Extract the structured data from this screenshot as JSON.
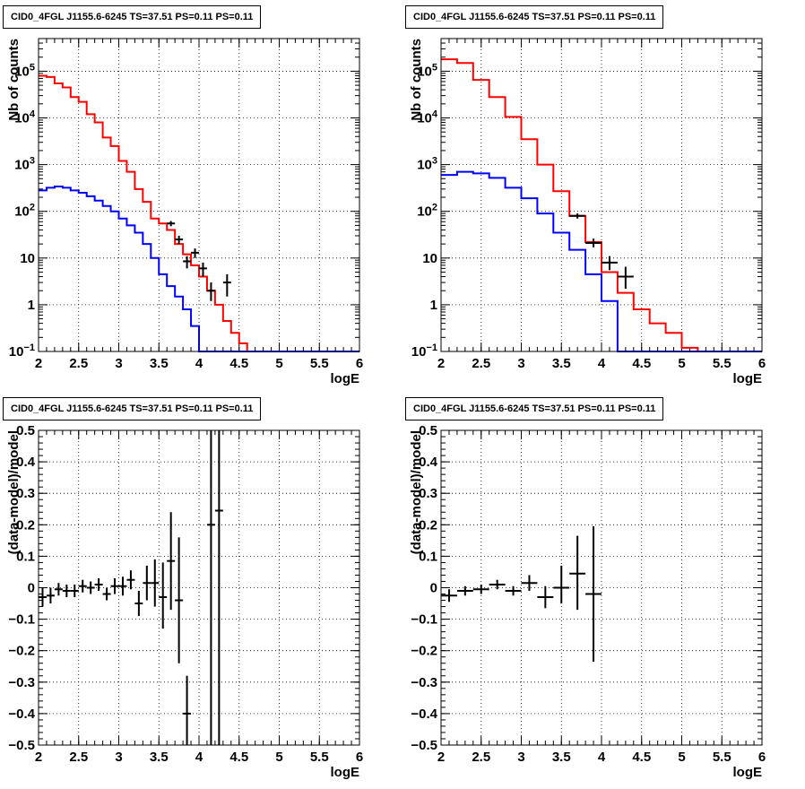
{
  "chart_data": [
    {
      "type": "line",
      "title": "CID0_4FGL J1155.6-6245 TS=37.51 PS=0.11 PS=0.11",
      "xlabel": "logE",
      "ylabel": "Nb of counts",
      "xlim": [
        2,
        6
      ],
      "ylim": [
        0.1,
        500000
      ],
      "yscale": "log",
      "grid": true,
      "x_ticks": [
        "2",
        "2.5",
        "3",
        "3.5",
        "4",
        "4.5",
        "5",
        "5.5",
        "6"
      ],
      "y_ticks": [
        {
          "v": 0.1,
          "base": "10",
          "exp": "−1"
        },
        {
          "v": 1,
          "label": "1"
        },
        {
          "v": 10,
          "label": "10"
        },
        {
          "v": 100,
          "base": "10",
          "exp": "2"
        },
        {
          "v": 1000,
          "base": "10",
          "exp": "3"
        },
        {
          "v": 10000,
          "base": "10",
          "exp": "4"
        },
        {
          "v": 100000,
          "base": "10",
          "exp": "5"
        }
      ],
      "bin_edges": [
        2.0,
        2.1,
        2.2,
        2.3,
        2.4,
        2.5,
        2.6,
        2.7,
        2.8,
        2.9,
        3.0,
        3.1,
        3.2,
        3.3,
        3.4,
        3.5,
        3.6,
        3.7,
        3.8,
        3.9,
        4.0,
        4.1,
        4.2,
        4.3,
        4.4,
        4.5,
        4.6,
        4.7,
        4.8,
        4.9,
        5.0,
        5.1,
        5.2,
        5.3,
        5.4,
        5.5,
        5.6,
        5.7,
        5.8,
        5.9,
        6.0
      ],
      "series": [
        {
          "color": "#ff0000",
          "style": "step",
          "values": [
            80000,
            75000,
            55000,
            45000,
            28000,
            22000,
            12000,
            8000,
            3800,
            2500,
            1200,
            700,
            300,
            160,
            70,
            55,
            40,
            20,
            12,
            7,
            4,
            2,
            1,
            0.45,
            0.25,
            0.15,
            0.1,
            0.1,
            0.1,
            0.1,
            0.1,
            0.1,
            0.1,
            0.1,
            0.1,
            0.1,
            0.1,
            0.1,
            0.1,
            0.1
          ]
        },
        {
          "color": "#0000ff",
          "style": "step",
          "values": [
            280,
            320,
            340,
            320,
            280,
            250,
            210,
            170,
            130,
            100,
            70,
            50,
            35,
            20,
            10,
            4.5,
            2.5,
            1.5,
            0.8,
            0.35,
            0.1,
            0.1,
            0.1,
            0.1,
            0.1,
            0.1,
            0.1,
            0.1,
            0.1,
            0.1,
            0.1,
            0.1,
            0.1,
            0.1,
            0.1,
            0.1,
            0.1,
            0.1,
            0.1,
            0.1
          ]
        }
      ],
      "points": [
        {
          "x": 3.65,
          "y": 55,
          "xerr": 0.05,
          "ylo": 48,
          "yhi": 62
        },
        {
          "x": 3.75,
          "y": 25,
          "xerr": 0.05,
          "ylo": 20,
          "yhi": 30
        },
        {
          "x": 3.85,
          "y": 8.5,
          "xerr": 0.05,
          "ylo": 6,
          "yhi": 11
        },
        {
          "x": 3.95,
          "y": 13,
          "xerr": 0.05,
          "ylo": 10,
          "yhi": 16
        },
        {
          "x": 4.05,
          "y": 6,
          "xerr": 0.05,
          "ylo": 4,
          "yhi": 8
        },
        {
          "x": 4.15,
          "y": 2,
          "xerr": 0.05,
          "ylo": 1.2,
          "yhi": 3
        },
        {
          "x": 4.35,
          "y": 3,
          "xerr": 0.05,
          "ylo": 1.5,
          "yhi": 4.5
        }
      ]
    },
    {
      "type": "line",
      "title": "CID0_4FGL J1155.6-6245 TS=37.51 PS=0.11 PS=0.11",
      "xlabel": "logE",
      "ylabel": "Nb of counts",
      "xlim": [
        2,
        6
      ],
      "ylim": [
        0.1,
        500000
      ],
      "yscale": "log",
      "grid": true,
      "x_ticks": [
        "2",
        "2.5",
        "3",
        "3.5",
        "4",
        "4.5",
        "5",
        "5.5",
        "6"
      ],
      "y_ticks": [
        {
          "v": 0.1,
          "base": "10",
          "exp": "−1"
        },
        {
          "v": 1,
          "label": "1"
        },
        {
          "v": 10,
          "label": "10"
        },
        {
          "v": 100,
          "base": "10",
          "exp": "2"
        },
        {
          "v": 1000,
          "base": "10",
          "exp": "3"
        },
        {
          "v": 10000,
          "base": "10",
          "exp": "4"
        },
        {
          "v": 100000,
          "base": "10",
          "exp": "5"
        }
      ],
      "bin_edges": [
        2.0,
        2.2,
        2.4,
        2.6,
        2.8,
        3.0,
        3.2,
        3.4,
        3.6,
        3.8,
        4.0,
        4.2,
        4.4,
        4.6,
        4.8,
        5.0,
        5.2,
        5.4,
        5.6,
        5.8,
        6.0
      ],
      "series": [
        {
          "color": "#ff0000",
          "style": "step",
          "values": [
            180000,
            150000,
            65000,
            28000,
            10500,
            3500,
            1000,
            270,
            80,
            22,
            5,
            1.8,
            0.8,
            0.4,
            0.25,
            0.12,
            0.1,
            0.1,
            0.1,
            0.1
          ]
        },
        {
          "color": "#0000ff",
          "style": "step",
          "values": [
            600,
            700,
            650,
            520,
            320,
            190,
            90,
            35,
            15,
            4.5,
            1.2,
            0.1,
            0.1,
            0.1,
            0.1,
            0.1,
            0.1,
            0.1,
            0.1,
            0.1
          ]
        }
      ],
      "points": [
        {
          "x": 3.7,
          "y": 80,
          "xerr": 0.1,
          "ylo": 70,
          "yhi": 90
        },
        {
          "x": 3.9,
          "y": 21,
          "xerr": 0.1,
          "ylo": 17,
          "yhi": 26
        },
        {
          "x": 4.1,
          "y": 8,
          "xerr": 0.1,
          "ylo": 5.5,
          "yhi": 11
        },
        {
          "x": 4.3,
          "y": 4,
          "xerr": 0.1,
          "ylo": 2.2,
          "yhi": 6.5
        }
      ]
    },
    {
      "type": "scatter",
      "title": "CID0_4FGL J1155.6-6245 TS=37.51 PS=0.11 PS=0.11",
      "xlabel": "logE",
      "ylabel": "(data-model)/model",
      "xlim": [
        2,
        6
      ],
      "ylim": [
        -0.5,
        0.5
      ],
      "yscale": "linear",
      "grid": true,
      "x_ticks": [
        "2",
        "2.5",
        "3",
        "3.5",
        "4",
        "4.5",
        "5",
        "5.5",
        "6"
      ],
      "y_ticks": [
        {
          "v": -0.5,
          "label": "−0.5"
        },
        {
          "v": -0.4,
          "label": "−0.4"
        },
        {
          "v": -0.3,
          "label": "−0.3"
        },
        {
          "v": -0.2,
          "label": "−0.2"
        },
        {
          "v": -0.1,
          "label": "−0.1"
        },
        {
          "v": 0,
          "label": "0"
        },
        {
          "v": 0.1,
          "label": "0.1"
        },
        {
          "v": 0.2,
          "label": "0.2"
        },
        {
          "v": 0.3,
          "label": "0.3"
        },
        {
          "v": 0.4,
          "label": "0.4"
        },
        {
          "v": 0.5,
          "label": "0.5"
        }
      ],
      "points": [
        {
          "x": 2.05,
          "y": -0.03,
          "xerr": 0.05,
          "ylo": -0.06,
          "yhi": 0.0
        },
        {
          "x": 2.15,
          "y": -0.025,
          "xerr": 0.05,
          "ylo": -0.05,
          "yhi": 0.0
        },
        {
          "x": 2.25,
          "y": -0.005,
          "xerr": 0.05,
          "ylo": -0.025,
          "yhi": 0.015
        },
        {
          "x": 2.35,
          "y": -0.01,
          "xerr": 0.05,
          "ylo": -0.03,
          "yhi": 0.01
        },
        {
          "x": 2.45,
          "y": -0.01,
          "xerr": 0.05,
          "ylo": -0.03,
          "yhi": 0.01
        },
        {
          "x": 2.55,
          "y": 0.005,
          "xerr": 0.05,
          "ylo": -0.015,
          "yhi": 0.025
        },
        {
          "x": 2.65,
          "y": 0.0,
          "xerr": 0.05,
          "ylo": -0.02,
          "yhi": 0.02
        },
        {
          "x": 2.75,
          "y": 0.01,
          "xerr": 0.05,
          "ylo": -0.01,
          "yhi": 0.03
        },
        {
          "x": 2.85,
          "y": -0.02,
          "xerr": 0.05,
          "ylo": -0.04,
          "yhi": 0.0
        },
        {
          "x": 2.95,
          "y": 0.005,
          "xerr": 0.05,
          "ylo": -0.02,
          "yhi": 0.03
        },
        {
          "x": 3.05,
          "y": 0.005,
          "xerr": 0.05,
          "ylo": -0.025,
          "yhi": 0.035
        },
        {
          "x": 3.15,
          "y": 0.025,
          "xerr": 0.05,
          "ylo": -0.005,
          "yhi": 0.055
        },
        {
          "x": 3.25,
          "y": -0.05,
          "xerr": 0.05,
          "ylo": -0.09,
          "yhi": -0.01
        },
        {
          "x": 3.35,
          "y": 0.015,
          "xerr": 0.05,
          "ylo": -0.04,
          "yhi": 0.07
        },
        {
          "x": 3.45,
          "y": 0.015,
          "xerr": 0.05,
          "ylo": -0.06,
          "yhi": 0.09
        },
        {
          "x": 3.55,
          "y": -0.03,
          "xerr": 0.05,
          "ylo": -0.13,
          "yhi": 0.08
        },
        {
          "x": 3.65,
          "y": 0.085,
          "xerr": 0.05,
          "ylo": -0.07,
          "yhi": 0.24
        },
        {
          "x": 3.75,
          "y": -0.04,
          "xerr": 0.05,
          "ylo": -0.24,
          "yhi": 0.16
        },
        {
          "x": 3.85,
          "y": -0.4,
          "xerr": 0.05,
          "ylo": -0.5,
          "yhi": -0.28
        },
        {
          "x": 4.15,
          "y": 0.2,
          "xerr": 0.05,
          "ylo": -0.5,
          "yhi": 0.5
        },
        {
          "x": 4.25,
          "y": 0.245,
          "xerr": 0.05,
          "ylo": -0.5,
          "yhi": 0.5
        }
      ]
    },
    {
      "type": "scatter",
      "title": "CID0_4FGL J1155.6-6245 TS=37.51 PS=0.11 PS=0.11",
      "xlabel": "logE",
      "ylabel": "(data-model)/model",
      "xlim": [
        2,
        6
      ],
      "ylim": [
        -0.5,
        0.5
      ],
      "yscale": "linear",
      "grid": true,
      "x_ticks": [
        "2",
        "2.5",
        "3",
        "3.5",
        "4",
        "4.5",
        "5",
        "5.5",
        "6"
      ],
      "y_ticks": [
        {
          "v": -0.5,
          "label": "−0.5"
        },
        {
          "v": -0.4,
          "label": "−0.4"
        },
        {
          "v": -0.3,
          "label": "−0.3"
        },
        {
          "v": -0.2,
          "label": "−0.2"
        },
        {
          "v": -0.1,
          "label": "−0.1"
        },
        {
          "v": 0,
          "label": "0"
        },
        {
          "v": 0.1,
          "label": "0.1"
        },
        {
          "v": 0.2,
          "label": "0.2"
        },
        {
          "v": 0.3,
          "label": "0.3"
        },
        {
          "v": 0.4,
          "label": "0.4"
        },
        {
          "v": 0.5,
          "label": "0.5"
        }
      ],
      "points": [
        {
          "x": 2.1,
          "y": -0.025,
          "xerr": 0.1,
          "ylo": -0.045,
          "yhi": -0.005
        },
        {
          "x": 2.3,
          "y": -0.01,
          "xerr": 0.1,
          "ylo": -0.025,
          "yhi": 0.005
        },
        {
          "x": 2.5,
          "y": -0.005,
          "xerr": 0.1,
          "ylo": -0.02,
          "yhi": 0.01
        },
        {
          "x": 2.7,
          "y": 0.01,
          "xerr": 0.1,
          "ylo": -0.005,
          "yhi": 0.025
        },
        {
          "x": 2.9,
          "y": -0.01,
          "xerr": 0.1,
          "ylo": -0.025,
          "yhi": 0.005
        },
        {
          "x": 3.1,
          "y": 0.015,
          "xerr": 0.1,
          "ylo": -0.01,
          "yhi": 0.04
        },
        {
          "x": 3.3,
          "y": -0.03,
          "xerr": 0.1,
          "ylo": -0.065,
          "yhi": 0.005
        },
        {
          "x": 3.5,
          "y": 0.0,
          "xerr": 0.1,
          "ylo": -0.05,
          "yhi": 0.07
        },
        {
          "x": 3.7,
          "y": 0.045,
          "xerr": 0.1,
          "ylo": -0.07,
          "yhi": 0.165
        },
        {
          "x": 3.9,
          "y": -0.02,
          "xerr": 0.1,
          "ylo": -0.235,
          "yhi": 0.195
        }
      ]
    }
  ]
}
